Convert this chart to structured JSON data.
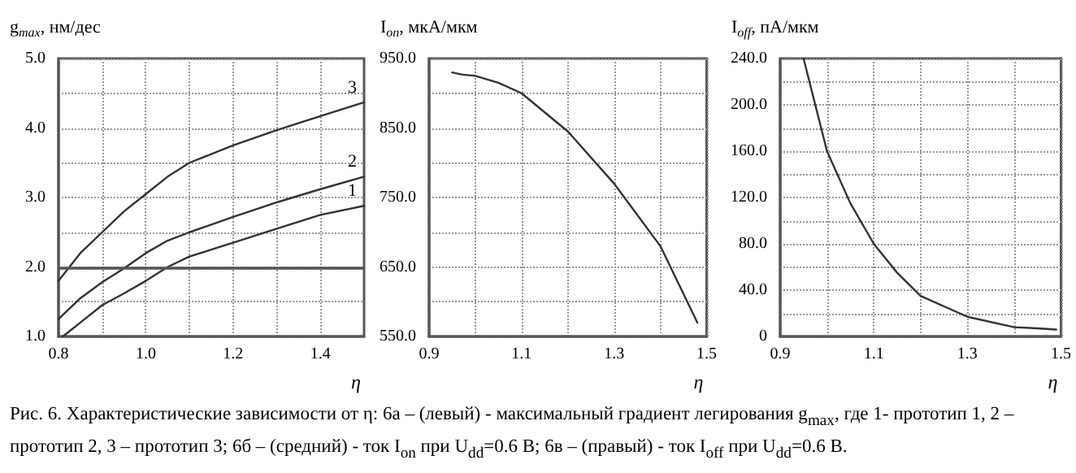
{
  "chart_data": [
    {
      "type": "line",
      "ylabel": "g$_{max}$, нм/дес",
      "xlabel": "η",
      "xlim": [
        0.8,
        1.5
      ],
      "ylim": [
        1,
        5
      ],
      "xticks": [
        0.8,
        {
          "value": 0.9,
          "label": null
        },
        {
          "value": 1.0,
          "label": "1.0"
        },
        {
          "value": 1.1,
          "label": null
        },
        1.2,
        {
          "value": 1.3,
          "label": null
        },
        1.4
      ],
      "yticks": [
        {
          "value": 1,
          "label": "1.0"
        },
        {
          "value": 1.5,
          "label": null
        },
        {
          "value": 2,
          "label": "2.0"
        },
        {
          "value": 2.5,
          "label": null
        },
        {
          "value": 3,
          "label": "3.0"
        },
        {
          "value": 3.5,
          "label": null
        },
        {
          "value": 4,
          "label": "4.0"
        },
        {
          "value": 4.5,
          "label": null
        },
        {
          "value": 5,
          "label": "5.0"
        }
      ],
      "grid": true,
      "line_style": "solid",
      "marker": "none",
      "ref_lines": [
        {
          "axis": "y",
          "value": 2,
          "color": "#555555"
        }
      ],
      "series": [
        {
          "name": "1",
          "color": "#333333",
          "x": [
            0.81,
            0.85,
            0.9,
            0.95,
            1.0,
            1.05,
            1.1,
            1.2,
            1.3,
            1.4,
            1.5
          ],
          "values": [
            1.0,
            1.2,
            1.45,
            1.62,
            1.8,
            2.0,
            2.15,
            2.35,
            2.55,
            2.75,
            2.88
          ]
        },
        {
          "name": "2",
          "color": "#333333",
          "x": [
            0.8,
            0.85,
            0.9,
            0.95,
            1.0,
            1.05,
            1.1,
            1.2,
            1.3,
            1.4,
            1.5
          ],
          "values": [
            1.25,
            1.55,
            1.78,
            1.98,
            2.2,
            2.38,
            2.5,
            2.72,
            2.93,
            3.12,
            3.3
          ]
        },
        {
          "name": "3",
          "color": "#333333",
          "x": [
            0.8,
            0.85,
            0.9,
            0.95,
            1.0,
            1.05,
            1.1,
            1.2,
            1.3,
            1.4,
            1.5
          ],
          "values": [
            1.8,
            2.2,
            2.5,
            2.8,
            3.05,
            3.3,
            3.5,
            3.75,
            3.97,
            4.17,
            4.37
          ]
        }
      ],
      "annotations": [
        "Рис. 6. Характеристические зависимости от η: 6а – (левый) - максимальный градиент легирования g$_{max}$, где 1- прототип 1, 2 – прототип 2, 3 – прототип 3; 6б – (средний) - ток I$_{on}$ при U$_{dd}$=0.6 В; 6в – (правый) - ток I$_{off}$ при U$_{dd}$=0.6 В."
      ]
    },
    {
      "type": "line",
      "ylabel": "I$_{on}$, мкА/мкм",
      "xlabel": "η",
      "xlim": [
        0.9,
        1.5
      ],
      "ylim": [
        550,
        950
      ],
      "xticks": [
        0.9,
        {
          "value": 1.0,
          "label": null
        },
        1.1,
        {
          "value": 1.2,
          "label": null
        },
        1.3,
        {
          "value": 1.4,
          "label": null
        },
        1.5
      ],
      "yticks": [
        {
          "value": 550,
          "label": "550.0"
        },
        {
          "value": 600,
          "label": null
        },
        {
          "value": 650,
          "label": "650.0"
        },
        {
          "value": 700,
          "label": null
        },
        {
          "value": 750,
          "label": "750.0"
        },
        {
          "value": 800,
          "label": null
        },
        {
          "value": 850,
          "label": "850.0"
        },
        {
          "value": 900,
          "label": null
        },
        {
          "value": 950,
          "label": "950.0"
        }
      ],
      "grid": true,
      "line_style": "solid",
      "marker": "none",
      "series": [
        {
          "color": "#333333",
          "x": [
            0.95,
            0.97,
            1.0,
            1.05,
            1.1,
            1.2,
            1.3,
            1.4,
            1.48
          ],
          "values": [
            930,
            927,
            925,
            915,
            900,
            845,
            770,
            680,
            570
          ]
        }
      ]
    },
    {
      "type": "line",
      "ylabel": "I$_{off}$, пА/мкм",
      "xlabel": "η",
      "xlim": [
        0.9,
        1.5
      ],
      "ylim": [
        0,
        240
      ],
      "xticks": [
        0.9,
        {
          "value": 1.0,
          "label": null
        },
        1.1,
        {
          "value": 1.2,
          "label": null
        },
        1.3,
        {
          "value": 1.4,
          "label": null
        },
        1.5
      ],
      "yticks": [
        0,
        {
          "value": 20,
          "label": null
        },
        {
          "value": 40,
          "label": "40.0"
        },
        {
          "value": 60,
          "label": null
        },
        {
          "value": 80,
          "label": "80.0"
        },
        {
          "value": 100,
          "label": null
        },
        {
          "value": 120,
          "label": "120.0"
        },
        {
          "value": 140,
          "label": null
        },
        {
          "value": 160,
          "label": "160.0"
        },
        {
          "value": 180,
          "label": null
        },
        {
          "value": 200,
          "label": "200.0"
        },
        {
          "value": 220,
          "label": null
        },
        {
          "value": 240,
          "label": "240.0"
        }
      ],
      "grid": true,
      "line_style": "solid",
      "marker": "none",
      "series": [
        {
          "color": "#333333",
          "x": [
            0.95,
            1.0,
            1.05,
            1.1,
            1.15,
            1.2,
            1.3,
            1.4,
            1.45,
            1.49
          ],
          "values": [
            240,
            160,
            115,
            80,
            55,
            35,
            17,
            8,
            7,
            6
          ]
        }
      ]
    }
  ]
}
